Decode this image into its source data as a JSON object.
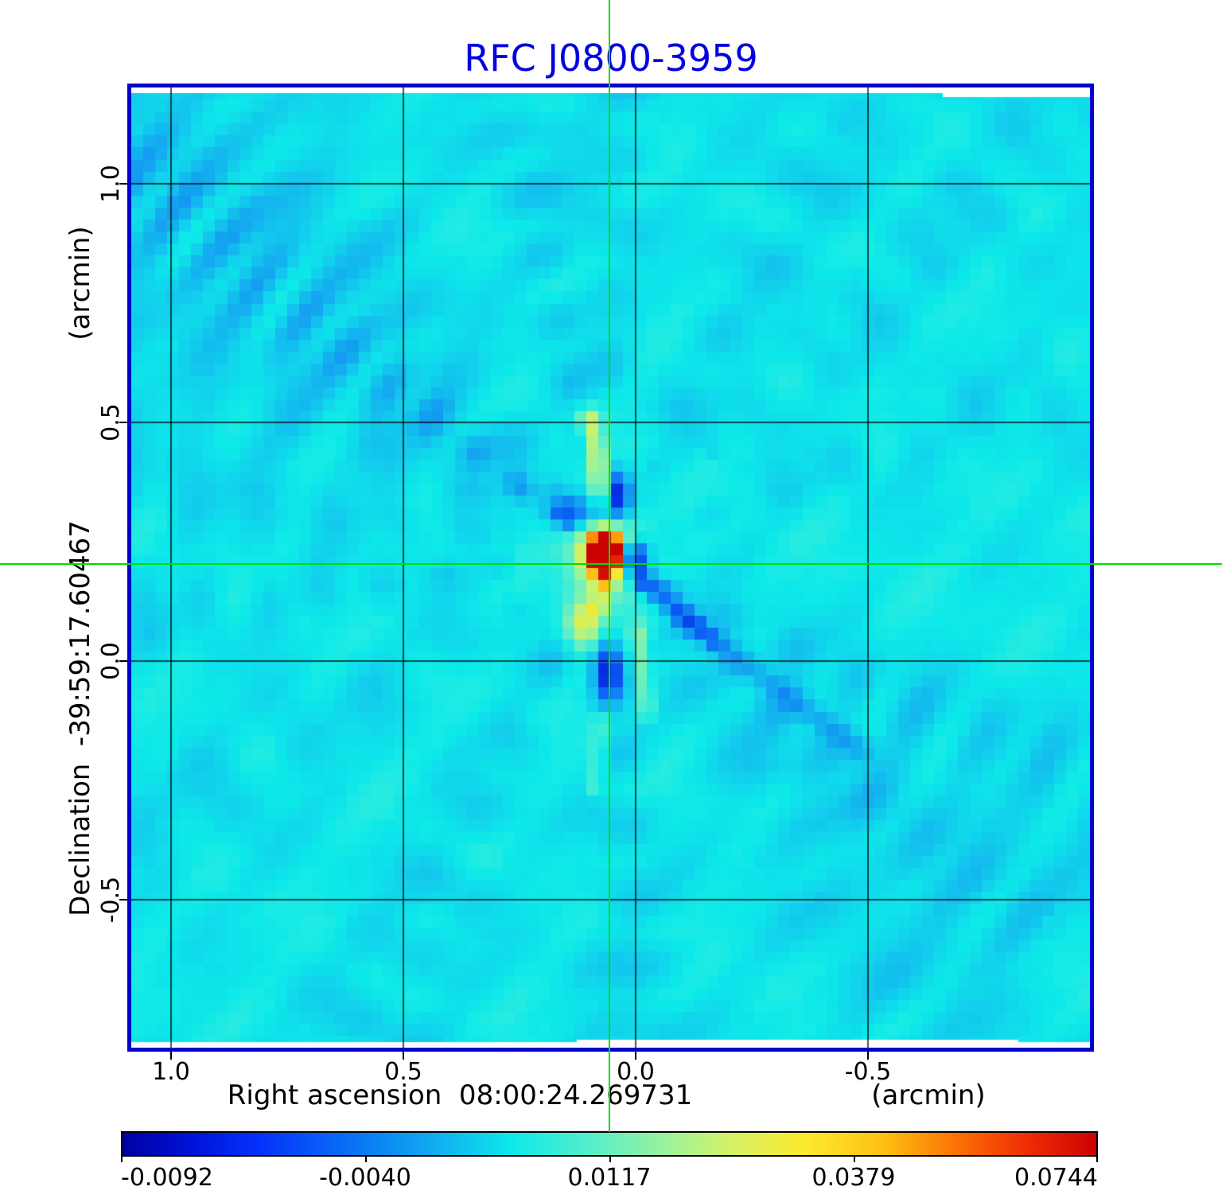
{
  "chart_data": {
    "type": "heatmap",
    "title": "RFC J0800-3959",
    "title_color": "#0000e0",
    "frame_color": "#0000cc",
    "grid_color": "#000000",
    "grid": true,
    "x_axis": {
      "name": "Right ascension",
      "center_value": "08:00:24.269731",
      "label_full": "Right ascension  08:00:24.269731",
      "unit": "(arcmin)",
      "tick_labels": [
        "1.0",
        "0.5",
        "0.0",
        "-0.5"
      ],
      "tick_values_arcmin": [
        1.0,
        0.5,
        0.0,
        -0.5
      ],
      "range_arcmin": [
        1.09,
        -0.99
      ]
    },
    "y_axis": {
      "name": "Declination",
      "center_value": "-39:59:17.60467",
      "label_full": "Declination  -39:59:17.60467",
      "unit": "(arcmin)",
      "tick_labels": [
        "1.0",
        "0.5",
        "0.0",
        "-0.5"
      ],
      "tick_values_arcmin": [
        1.0,
        0.5,
        0.0,
        -0.5
      ],
      "range_arcmin": [
        1.2,
        -0.81
      ]
    },
    "colorbar": {
      "tick_labels": [
        "-0.0092",
        "-0.0040",
        "0.0117",
        "0.0379",
        "0.0744"
      ],
      "gradient_stops": [
        [
          0.0,
          "#0000a0"
        ],
        [
          0.07,
          "#0013d8"
        ],
        [
          0.14,
          "#0531fa"
        ],
        [
          0.25,
          "#0a7cf2"
        ],
        [
          0.33,
          "#10b4ee"
        ],
        [
          0.4,
          "#0de9e9"
        ],
        [
          0.48,
          "#55eecb"
        ],
        [
          0.56,
          "#9df29a"
        ],
        [
          0.63,
          "#d8f163"
        ],
        [
          0.7,
          "#fdea2e"
        ],
        [
          0.78,
          "#ffc113"
        ],
        [
          0.86,
          "#fb6e06"
        ],
        [
          0.93,
          "#ef2b03"
        ],
        [
          1.0,
          "#cd0202"
        ]
      ]
    },
    "crosshair": {
      "color": "#00dc00",
      "x_arcmin": 0.05,
      "y_arcmin": 0.2
    },
    "map": {
      "background_color": "#0de9e9",
      "peak": {
        "x_arcmin": 0.06,
        "y_arcmin": 0.22,
        "colorbar_value": "0.0744"
      },
      "center_frac": [
        0.4938,
        0.4847
      ],
      "cmap_stops": [
        [
          -1.0,
          "#00008f"
        ],
        [
          -0.6,
          "#0020dd"
        ],
        [
          -0.38,
          "#0d62f5"
        ],
        [
          -0.2,
          "#14a5f0"
        ],
        [
          -0.08,
          "#12cfec"
        ],
        [
          0.0,
          "#0de9e9"
        ],
        [
          0.12,
          "#4feed2"
        ],
        [
          0.25,
          "#8df2a6"
        ],
        [
          0.4,
          "#c8f36e"
        ],
        [
          0.55,
          "#f5e832"
        ],
        [
          0.68,
          "#ffb712"
        ],
        [
          0.8,
          "#fb7005"
        ],
        [
          0.9,
          "#ea2c04"
        ],
        [
          1.0,
          "#cc0202"
        ]
      ],
      "blobs": [
        {
          "name": "core",
          "x": 0.4938,
          "y": 0.4847,
          "sx": 0.012,
          "sy": 0.0145,
          "amp": 1.45
        },
        {
          "name": "halo",
          "x": 0.4938,
          "y": 0.4865,
          "sx": 0.024,
          "sy": 0.028,
          "amp": 0.52
        },
        {
          "name": "neg-east",
          "x": 0.523,
          "y": 0.49,
          "sx": 0.0105,
          "sy": 0.0125,
          "amp": -0.78
        },
        {
          "name": "neg-north",
          "x": 0.506,
          "y": 0.4245,
          "sx": 0.009,
          "sy": 0.017,
          "amp": -0.66
        },
        {
          "name": "neg-northwest",
          "x": 0.465,
          "y": 0.443,
          "sx": 0.017,
          "sy": 0.013,
          "amp": -0.4
        },
        {
          "name": "pos-southwest",
          "x": 0.473,
          "y": 0.558,
          "sx": 0.013,
          "sy": 0.017,
          "amp": 0.5
        },
        {
          "name": "neg-south",
          "x": 0.497,
          "y": 0.608,
          "sx": 0.01,
          "sy": 0.022,
          "amp": -0.56
        }
      ],
      "segments": [
        {
          "name": "pos-streak-north",
          "x1": 0.479,
          "y1": 0.345,
          "x2": 0.492,
          "y2": 0.424,
          "w": 0.0075,
          "amp": 0.4
        },
        {
          "name": "pos-link-south",
          "x1": 0.492,
          "y1": 0.515,
          "x2": 0.487,
          "y2": 0.545,
          "w": 0.006,
          "amp": 0.3
        },
        {
          "name": "neg-diagonal-southeast",
          "x1": 0.532,
          "y1": 0.512,
          "x2": 0.607,
          "y2": 0.575,
          "w": 0.008,
          "amp": -0.36
        },
        {
          "name": "neg-diagonal-southeast-far",
          "x1": 0.62,
          "y1": 0.585,
          "x2": 0.76,
          "y2": 0.69,
          "w": 0.009,
          "amp": -0.17
        },
        {
          "name": "pos-streak-south",
          "x1": 0.528,
          "y1": 0.565,
          "x2": 0.537,
          "y2": 0.65,
          "w": 0.006,
          "amp": 0.22
        },
        {
          "name": "pos-faint-south",
          "x1": 0.49,
          "y1": 0.66,
          "x2": 0.484,
          "y2": 0.73,
          "w": 0.006,
          "amp": 0.14
        }
      ],
      "spokes": [
        {
          "a": 142,
          "w": 5,
          "amp": -0.2,
          "r0": 0.02,
          "r1": 0.78,
          "f": 110,
          "p": 0.0
        },
        {
          "a": 130,
          "w": 7,
          "amp": -0.11,
          "r0": 0.05,
          "r1": 0.85,
          "f": 75,
          "p": 1.0
        },
        {
          "a": 156,
          "w": 6,
          "amp": -0.1,
          "r0": 0.1,
          "r1": 0.9,
          "f": 65,
          "p": 2.0
        },
        {
          "a": 171,
          "w": 5,
          "amp": -0.08,
          "r0": 0.1,
          "r1": 0.85,
          "f": 85,
          "p": 0.5
        },
        {
          "a": 101,
          "w": 5,
          "amp": -0.1,
          "r0": 0.07,
          "r1": 0.6,
          "f": 95,
          "p": 1.5
        },
        {
          "a": 88,
          "w": 4,
          "amp": -0.08,
          "r0": 0.15,
          "r1": 0.8,
          "f": 85,
          "p": 2.5
        },
        {
          "a": 62,
          "w": 6,
          "amp": -0.08,
          "r0": 0.1,
          "r1": 0.85,
          "f": 70,
          "p": 0.8
        },
        {
          "a": 43,
          "w": 5,
          "amp": -0.07,
          "r0": 0.15,
          "r1": 0.9,
          "f": 80,
          "p": 1.2
        },
        {
          "a": 20,
          "w": 5,
          "amp": -0.06,
          "r0": 0.1,
          "r1": 0.85,
          "f": 85,
          "p": 2.2
        },
        {
          "a": -27,
          "w": 5,
          "amp": -0.12,
          "r0": 0.05,
          "r1": 0.95,
          "f": 85,
          "p": 0.3
        },
        {
          "a": -42,
          "w": 5,
          "amp": -0.14,
          "r0": 0.04,
          "r1": 0.6,
          "f": 95,
          "p": 1.8
        },
        {
          "a": -56,
          "w": 6,
          "amp": -0.09,
          "r0": 0.1,
          "r1": 0.75,
          "f": 70,
          "p": 0.6
        },
        {
          "a": -86,
          "w": 5,
          "amp": -0.09,
          "r0": 0.1,
          "r1": 0.65,
          "f": 85,
          "p": 1.1
        },
        {
          "a": -116,
          "w": 6,
          "amp": -0.08,
          "r0": 0.1,
          "r1": 0.75,
          "f": 75,
          "p": 2.8
        },
        {
          "a": -149,
          "w": 6,
          "amp": -0.07,
          "r0": 0.1,
          "r1": 0.9,
          "f": 65,
          "p": 0.9
        },
        {
          "a": -172,
          "w": 4,
          "amp": -0.07,
          "r0": 0.1,
          "r1": 0.85,
          "f": 100,
          "p": 1.9
        }
      ]
    }
  }
}
